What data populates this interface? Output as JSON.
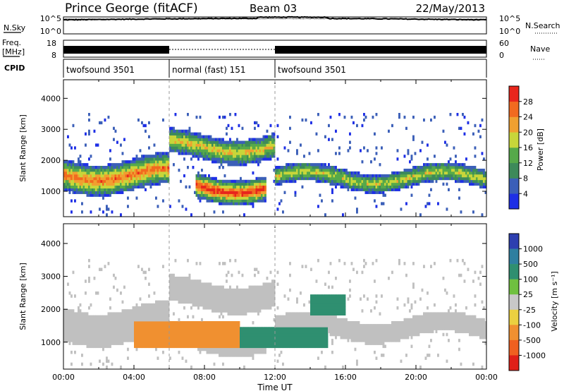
{
  "header": {
    "station": "Prince George (fitACF)",
    "beam": "Beam 03",
    "date": "22/May/2013"
  },
  "panels": {
    "nsky_label": "N.Sky",
    "nsky_ticks": [
      "10^5",
      "10^0"
    ],
    "nsearch_label": "N.Search",
    "nsearch_ticks": [
      "10^5",
      "10^0"
    ],
    "freq_label_1": "Freq.",
    "freq_label_2": "[MHz]",
    "freq_ticks": [
      "18",
      "8"
    ],
    "nave_label": "Nave",
    "nave_ticks": [
      "60",
      "0"
    ],
    "cpid_label": "CPID",
    "cpid_segments": [
      {
        "label": "twofsound 3501",
        "start": 0,
        "end": 6
      },
      {
        "label": "normal (fast) 151",
        "start": 6,
        "end": 12
      },
      {
        "label": "twofsound 3501",
        "start": 12,
        "end": 24
      }
    ]
  },
  "colors": {
    "power": [
      "#1e2fe6",
      "#3b5fb8",
      "#3d8a5a",
      "#56a94a",
      "#c8d63a",
      "#f0a030",
      "#f26a1f",
      "#e8261c"
    ],
    "velocity": [
      "#2d3fb0",
      "#2f7fa0",
      "#2f8f70",
      "#6fc040",
      "#c8c8c8",
      "#ebd040",
      "#f09030",
      "#f06020",
      "#e02018"
    ],
    "ground_scatter": "#c0c0c0"
  },
  "chart_data": [
    {
      "type": "heatmap",
      "title": "",
      "ylabel": "Slant Range [km]",
      "xlabel": "",
      "xlim": [
        0,
        24
      ],
      "ylim": [
        180,
        4600
      ],
      "y_ticks": [
        "1000",
        "2000",
        "3000",
        "4000"
      ],
      "colorbar": {
        "label": "Power [dB]",
        "range": [
          0,
          32
        ],
        "ticks": [
          "4",
          "8",
          "12",
          "16",
          "20",
          "24",
          "28"
        ]
      },
      "bands": [
        {
          "start": 0,
          "end": 6,
          "center": 1500,
          "width": 500,
          "level": 24
        },
        {
          "start": 6,
          "end": 12,
          "center": 2400,
          "width": 400,
          "level": 18
        },
        {
          "start": 12,
          "end": 24,
          "center": 1400,
          "width": 300,
          "level": 16
        },
        {
          "start": 7.5,
          "end": 11.5,
          "center": 1100,
          "width": 400,
          "level": 28
        }
      ]
    },
    {
      "type": "heatmap",
      "title": "",
      "ylabel": "Slant Range [km]",
      "xlabel": "Time UT",
      "xlim": [
        0,
        24
      ],
      "ylim": [
        180,
        4600
      ],
      "x_ticks": [
        "00:00",
        "04:00",
        "08:00",
        "12:00",
        "16:00",
        "20:00",
        "00:00"
      ],
      "y_ticks": [
        "1000",
        "2000",
        "3000",
        "4000"
      ],
      "colorbar": {
        "label": "Velocity [m s⁻¹]",
        "ticks": [
          "1000",
          "500",
          "100",
          "25",
          "-25",
          "-100",
          "-500",
          "-1000"
        ]
      },
      "bands": [
        {
          "start": 4,
          "end": 10,
          "center": 1200,
          "width": 400,
          "velocity": -300
        },
        {
          "start": 10,
          "end": 15,
          "center": 1100,
          "width": 300,
          "velocity": 200
        },
        {
          "start": 14,
          "end": 16,
          "center": 2100,
          "width": 300,
          "velocity": 400
        }
      ]
    }
  ]
}
